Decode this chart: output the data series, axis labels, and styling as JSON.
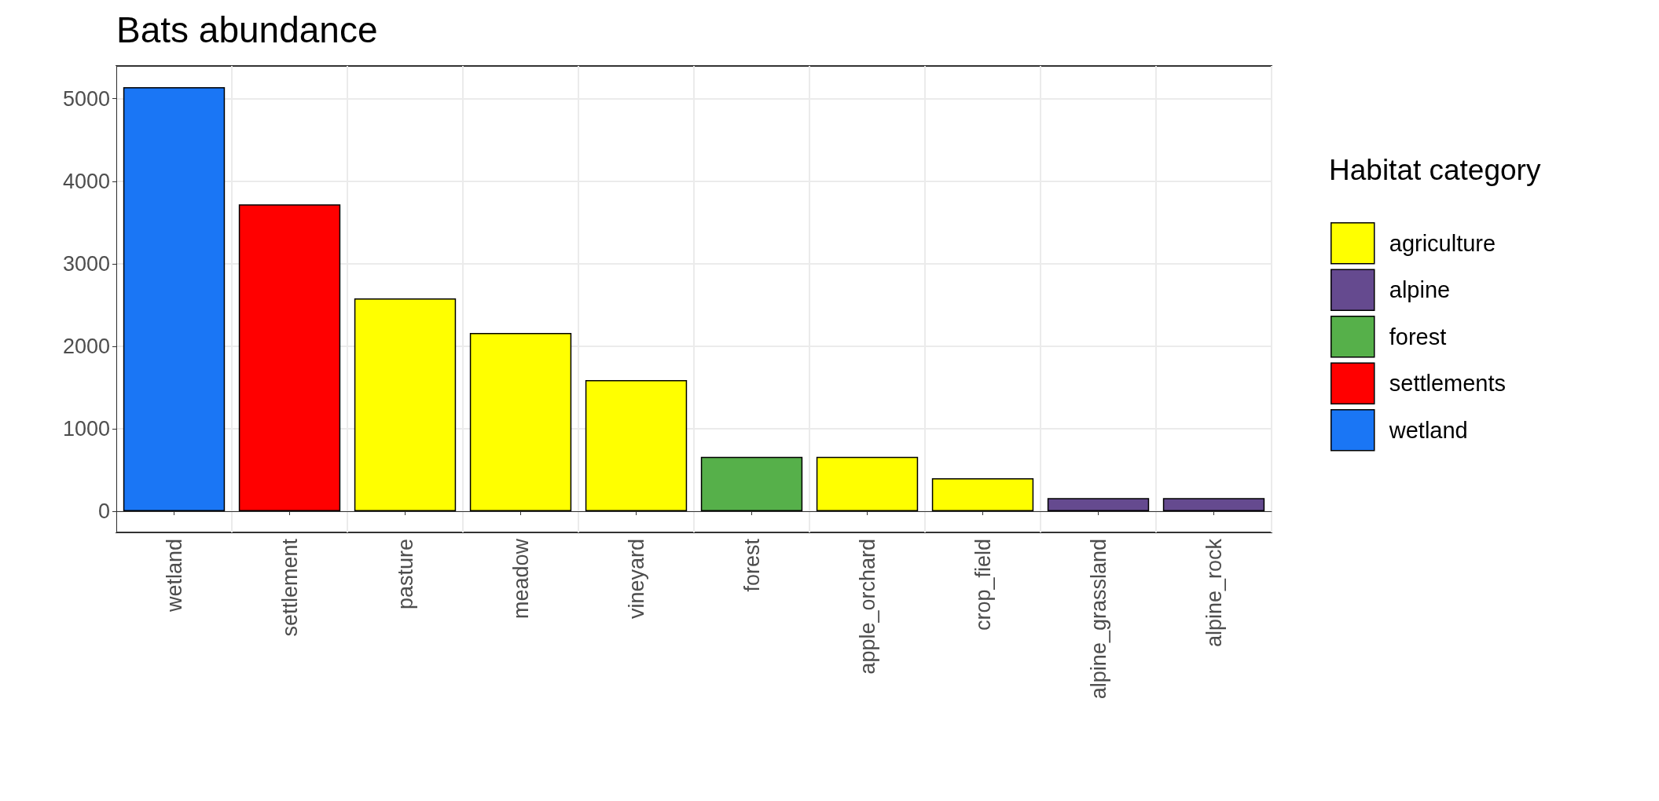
{
  "chart_data": {
    "type": "bar",
    "title": "Bats abundance",
    "legend_title": "Habitat category",
    "categories": [
      "wetland",
      "settlement",
      "pasture",
      "meadow",
      "vineyard",
      "forest",
      "apple_orchard",
      "crop_field",
      "alpine_grassland",
      "alpine_rock"
    ],
    "series": [
      {
        "name": "agriculture",
        "color": "#ffff00",
        "values": [
          null,
          null,
          2580,
          2160,
          1590,
          null,
          660,
          400,
          null,
          null
        ]
      },
      {
        "name": "alpine",
        "color": "#654a8f",
        "values": [
          null,
          null,
          null,
          null,
          null,
          null,
          null,
          null,
          160,
          160
        ]
      },
      {
        "name": "forest",
        "color": "#56b04a",
        "values": [
          null,
          null,
          null,
          null,
          null,
          660,
          null,
          null,
          null,
          null
        ]
      },
      {
        "name": "settlements",
        "color": "#ff0000",
        "values": [
          null,
          3720,
          null,
          null,
          null,
          null,
          null,
          null,
          null,
          null
        ]
      },
      {
        "name": "wetland",
        "color": "#1a76f5",
        "values": [
          5140,
          null,
          null,
          null,
          null,
          null,
          null,
          null,
          null,
          null
        ]
      }
    ],
    "ylim": [
      -257,
      5397
    ],
    "yticks": [
      0,
      1000,
      2000,
      3000,
      4000,
      5000
    ],
    "grid": true,
    "legend": "right"
  }
}
